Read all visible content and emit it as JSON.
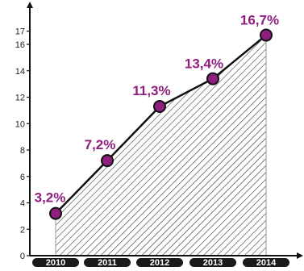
{
  "chart_data": {
    "type": "area",
    "categories": [
      "2010",
      "2011",
      "2012",
      "2013",
      "2014"
    ],
    "series": [
      {
        "values": [
          3.2,
          7.2,
          11.3,
          13.4,
          16.7
        ],
        "data_labels": [
          "3,2%",
          "7,2%",
          "11,3%",
          "13,4%",
          "16,7%"
        ]
      }
    ],
    "title": "",
    "xlabel": "",
    "ylabel": "",
    "ylim": [
      0,
      17.5
    ],
    "yticks": [
      0,
      2,
      4,
      6,
      8,
      10,
      12,
      14,
      16,
      17
    ],
    "grid": false,
    "fill_pattern": "diagonal-hatch",
    "colors": {
      "line": "#111111",
      "marker_fill": "#8e1f7f",
      "marker_stroke": "#111111",
      "data_label": "#8e1f7f",
      "category_pill": "#1a1a1a",
      "hatch": "#333333",
      "axis": "#111111"
    }
  }
}
